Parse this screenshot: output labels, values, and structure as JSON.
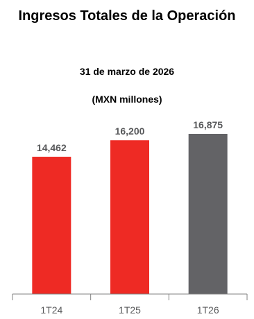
{
  "chart_data": {
    "type": "bar",
    "title": "Ingresos Totales de la Operación",
    "subtitle": [
      "31 de marzo de 2026",
      "(MXN millones)"
    ],
    "xlabel": "",
    "ylabel": "",
    "categories": [
      "1T24",
      "1T25",
      "1T26"
    ],
    "values": [
      14462,
      16200,
      16875
    ],
    "value_labels": [
      "14,462",
      "16,200",
      "16,875"
    ],
    "bar_colors": [
      "#ee2a24",
      "#ee2a24",
      "#636366"
    ],
    "ylim": [
      0,
      16875
    ],
    "grid": false,
    "legend": "none"
  }
}
